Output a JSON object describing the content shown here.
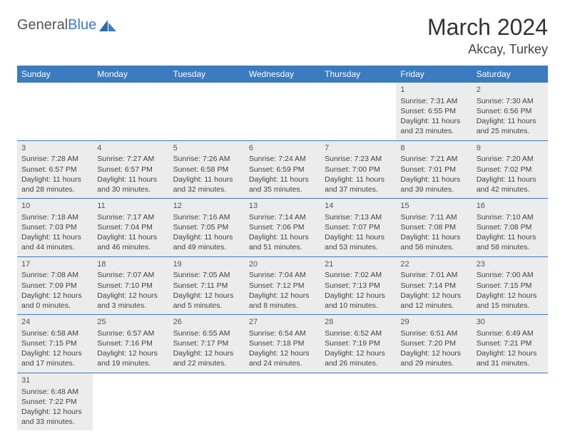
{
  "brand": {
    "name_gray": "General",
    "name_blue": "Blue"
  },
  "title": "March 2024",
  "location": "Akcay, Turkey",
  "colors": {
    "header_bg": "#3b7bbf",
    "header_text": "#ffffff",
    "shaded_cell": "#ececec",
    "border": "#3b7bbf",
    "text": "#444444"
  },
  "font": {
    "family": "Arial",
    "title_size": 32,
    "location_size": 18,
    "th_size": 12,
    "cell_size": 10.5
  },
  "weekdays": [
    "Sunday",
    "Monday",
    "Tuesday",
    "Wednesday",
    "Thursday",
    "Friday",
    "Saturday"
  ],
  "weeks": [
    [
      {
        "empty": true
      },
      {
        "empty": true
      },
      {
        "empty": true
      },
      {
        "empty": true
      },
      {
        "empty": true
      },
      {
        "day": "1",
        "sunrise": "Sunrise: 7:31 AM",
        "sunset": "Sunset: 6:55 PM",
        "daylight": "Daylight: 11 hours and 23 minutes."
      },
      {
        "day": "2",
        "sunrise": "Sunrise: 7:30 AM",
        "sunset": "Sunset: 6:56 PM",
        "daylight": "Daylight: 11 hours and 25 minutes."
      }
    ],
    [
      {
        "day": "3",
        "sunrise": "Sunrise: 7:28 AM",
        "sunset": "Sunset: 6:57 PM",
        "daylight": "Daylight: 11 hours and 28 minutes."
      },
      {
        "day": "4",
        "sunrise": "Sunrise: 7:27 AM",
        "sunset": "Sunset: 6:57 PM",
        "daylight": "Daylight: 11 hours and 30 minutes."
      },
      {
        "day": "5",
        "sunrise": "Sunrise: 7:26 AM",
        "sunset": "Sunset: 6:58 PM",
        "daylight": "Daylight: 11 hours and 32 minutes."
      },
      {
        "day": "6",
        "sunrise": "Sunrise: 7:24 AM",
        "sunset": "Sunset: 6:59 PM",
        "daylight": "Daylight: 11 hours and 35 minutes."
      },
      {
        "day": "7",
        "sunrise": "Sunrise: 7:23 AM",
        "sunset": "Sunset: 7:00 PM",
        "daylight": "Daylight: 11 hours and 37 minutes."
      },
      {
        "day": "8",
        "sunrise": "Sunrise: 7:21 AM",
        "sunset": "Sunset: 7:01 PM",
        "daylight": "Daylight: 11 hours and 39 minutes."
      },
      {
        "day": "9",
        "sunrise": "Sunrise: 7:20 AM",
        "sunset": "Sunset: 7:02 PM",
        "daylight": "Daylight: 11 hours and 42 minutes."
      }
    ],
    [
      {
        "day": "10",
        "sunrise": "Sunrise: 7:18 AM",
        "sunset": "Sunset: 7:03 PM",
        "daylight": "Daylight: 11 hours and 44 minutes."
      },
      {
        "day": "11",
        "sunrise": "Sunrise: 7:17 AM",
        "sunset": "Sunset: 7:04 PM",
        "daylight": "Daylight: 11 hours and 46 minutes."
      },
      {
        "day": "12",
        "sunrise": "Sunrise: 7:16 AM",
        "sunset": "Sunset: 7:05 PM",
        "daylight": "Daylight: 11 hours and 49 minutes."
      },
      {
        "day": "13",
        "sunrise": "Sunrise: 7:14 AM",
        "sunset": "Sunset: 7:06 PM",
        "daylight": "Daylight: 11 hours and 51 minutes."
      },
      {
        "day": "14",
        "sunrise": "Sunrise: 7:13 AM",
        "sunset": "Sunset: 7:07 PM",
        "daylight": "Daylight: 11 hours and 53 minutes."
      },
      {
        "day": "15",
        "sunrise": "Sunrise: 7:11 AM",
        "sunset": "Sunset: 7:08 PM",
        "daylight": "Daylight: 11 hours and 56 minutes."
      },
      {
        "day": "16",
        "sunrise": "Sunrise: 7:10 AM",
        "sunset": "Sunset: 7:08 PM",
        "daylight": "Daylight: 11 hours and 58 minutes."
      }
    ],
    [
      {
        "day": "17",
        "sunrise": "Sunrise: 7:08 AM",
        "sunset": "Sunset: 7:09 PM",
        "daylight": "Daylight: 12 hours and 0 minutes."
      },
      {
        "day": "18",
        "sunrise": "Sunrise: 7:07 AM",
        "sunset": "Sunset: 7:10 PM",
        "daylight": "Daylight: 12 hours and 3 minutes."
      },
      {
        "day": "19",
        "sunrise": "Sunrise: 7:05 AM",
        "sunset": "Sunset: 7:11 PM",
        "daylight": "Daylight: 12 hours and 5 minutes."
      },
      {
        "day": "20",
        "sunrise": "Sunrise: 7:04 AM",
        "sunset": "Sunset: 7:12 PM",
        "daylight": "Daylight: 12 hours and 8 minutes."
      },
      {
        "day": "21",
        "sunrise": "Sunrise: 7:02 AM",
        "sunset": "Sunset: 7:13 PM",
        "daylight": "Daylight: 12 hours and 10 minutes."
      },
      {
        "day": "22",
        "sunrise": "Sunrise: 7:01 AM",
        "sunset": "Sunset: 7:14 PM",
        "daylight": "Daylight: 12 hours and 12 minutes."
      },
      {
        "day": "23",
        "sunrise": "Sunrise: 7:00 AM",
        "sunset": "Sunset: 7:15 PM",
        "daylight": "Daylight: 12 hours and 15 minutes."
      }
    ],
    [
      {
        "day": "24",
        "sunrise": "Sunrise: 6:58 AM",
        "sunset": "Sunset: 7:15 PM",
        "daylight": "Daylight: 12 hours and 17 minutes."
      },
      {
        "day": "25",
        "sunrise": "Sunrise: 6:57 AM",
        "sunset": "Sunset: 7:16 PM",
        "daylight": "Daylight: 12 hours and 19 minutes."
      },
      {
        "day": "26",
        "sunrise": "Sunrise: 6:55 AM",
        "sunset": "Sunset: 7:17 PM",
        "daylight": "Daylight: 12 hours and 22 minutes."
      },
      {
        "day": "27",
        "sunrise": "Sunrise: 6:54 AM",
        "sunset": "Sunset: 7:18 PM",
        "daylight": "Daylight: 12 hours and 24 minutes."
      },
      {
        "day": "28",
        "sunrise": "Sunrise: 6:52 AM",
        "sunset": "Sunset: 7:19 PM",
        "daylight": "Daylight: 12 hours and 26 minutes."
      },
      {
        "day": "29",
        "sunrise": "Sunrise: 6:51 AM",
        "sunset": "Sunset: 7:20 PM",
        "daylight": "Daylight: 12 hours and 29 minutes."
      },
      {
        "day": "30",
        "sunrise": "Sunrise: 6:49 AM",
        "sunset": "Sunset: 7:21 PM",
        "daylight": "Daylight: 12 hours and 31 minutes."
      }
    ],
    [
      {
        "day": "31",
        "sunrise": "Sunrise: 6:48 AM",
        "sunset": "Sunset: 7:22 PM",
        "daylight": "Daylight: 12 hours and 33 minutes."
      },
      {
        "empty": true
      },
      {
        "empty": true
      },
      {
        "empty": true
      },
      {
        "empty": true
      },
      {
        "empty": true
      },
      {
        "empty": true
      }
    ]
  ]
}
